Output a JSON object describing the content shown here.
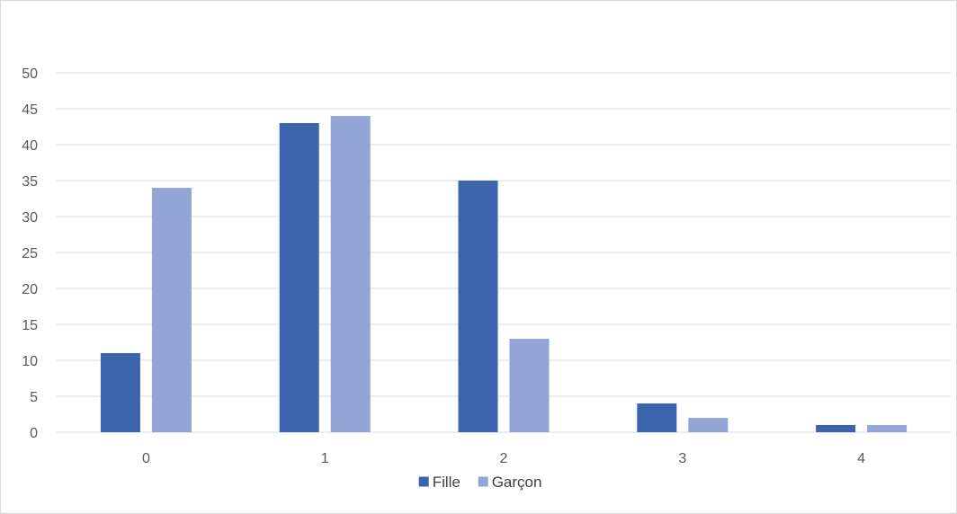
{
  "chart_data": {
    "type": "bar",
    "title": "",
    "xlabel": "",
    "ylabel": "",
    "categories": [
      "0",
      "1",
      "2",
      "3",
      "4"
    ],
    "series": [
      {
        "name": "Fille",
        "color": "#3c64ae",
        "values": [
          11,
          43,
          35,
          4,
          1
        ]
      },
      {
        "name": "Garçon",
        "color": "#91a6d6",
        "values": [
          34,
          44,
          13,
          2,
          1
        ]
      }
    ],
    "ylim": [
      0,
      50
    ],
    "yticks": [
      0,
      5,
      10,
      15,
      20,
      25,
      30,
      35,
      40,
      45,
      50
    ],
    "grid": true,
    "legend": "bottom"
  }
}
